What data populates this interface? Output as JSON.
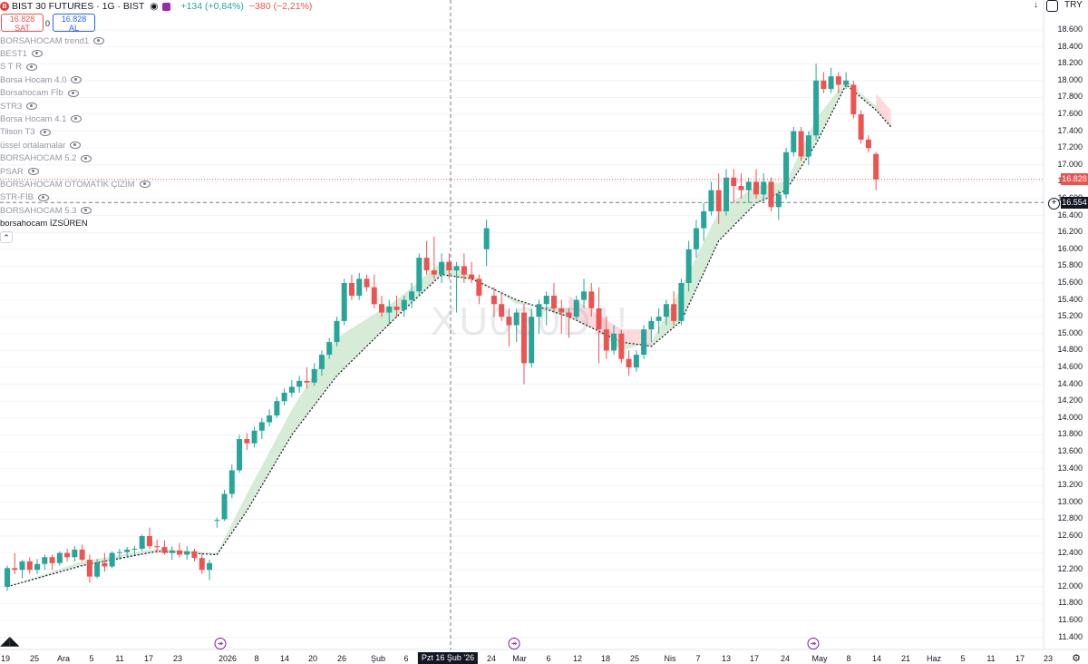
{
  "header": {
    "title": "BIST 30 FUTURES · 1G · BIST",
    "change_abs": "+134 (+0,84%)",
    "change_pct": "−380 (−2,21%)",
    "currency": "TRY"
  },
  "trade": {
    "sell_price": "16.828",
    "sell_label": "SAT",
    "spread": "0",
    "buy_price": "16.828",
    "buy_label": "AL"
  },
  "indicators": [
    "BORSAHOCAM trend1",
    "BEST1",
    "S T R",
    "Borsa Hocam 4.0",
    "Borsahocam Fİb",
    "STR3",
    "Borsa Hocam 4.1",
    "Tilson T3",
    "üssel ortalamalar",
    "BORSAHOCAM 5.2",
    "PSAR",
    "BORSAHOCAM OTOMATİK ÇİZİM",
    "STR-FİB",
    "BORSAHOCAM 5.3",
    "borsahocam İZSÜREN"
  ],
  "watermark": "XU030D1!",
  "price_badges": {
    "last": "16.828",
    "cursor": "16.554"
  },
  "x_cursor_label": "Pzt 16 Şub '26",
  "colors": {
    "up": "#26a69a",
    "down": "#ef5350",
    "band_up": "#c8e6c9",
    "band_down": "#ffcdd2",
    "purple": "#7b1fa2"
  },
  "chart_data": {
    "type": "candlestick",
    "y_ticks": [
      11400,
      11600,
      11800,
      12000,
      12200,
      12400,
      12600,
      12800,
      13000,
      13200,
      13400,
      13600,
      13800,
      14000,
      14200,
      14400,
      14600,
      14800,
      15000,
      15200,
      15400,
      15600,
      15800,
      16000,
      16200,
      16400,
      16600,
      16800,
      17000,
      17200,
      17400,
      17600,
      17800,
      18000,
      18200,
      18400,
      18600
    ],
    "y_tick_labels": [
      "11.400",
      "11.600",
      "11.800",
      "12.000",
      "12.200",
      "12.400",
      "12.600",
      "12.800",
      "13.000",
      "13.200",
      "13.400",
      "13.600",
      "13.800",
      "14.000",
      "14.200",
      "14.400",
      "14.600",
      "14.800",
      "15.000",
      "15.200",
      "15.400",
      "15.600",
      "15.800",
      "16.000",
      "16.200",
      "16.400",
      "16.600",
      "16.800",
      "17.000",
      "17.200",
      "17.400",
      "17.600",
      "17.800",
      "18.000",
      "18.200",
      "18.400",
      "18.600"
    ],
    "ylim": [
      11300,
      18750
    ],
    "last_price": 16828,
    "cursor_price": 16554,
    "x_ticks": [
      "19",
      "25",
      "Ara",
      "5",
      "11",
      "17",
      "23",
      "2026",
      "8",
      "14",
      "20",
      "26",
      "Şub",
      "6",
      "24",
      "Mar",
      "6",
      "12",
      "18",
      "25",
      "Nis",
      "7",
      "13",
      "17",
      "24",
      "May",
      "8",
      "14",
      "21",
      "Haz",
      "5",
      "11",
      "17",
      "23"
    ],
    "ohlc": [
      [
        12000,
        12250,
        11950,
        12220
      ],
      [
        12220,
        12400,
        12150,
        12200
      ],
      [
        12200,
        12320,
        12100,
        12300
      ],
      [
        12300,
        12350,
        12150,
        12200
      ],
      [
        12200,
        12330,
        12150,
        12270
      ],
      [
        12270,
        12380,
        12200,
        12350
      ],
      [
        12350,
        12380,
        12200,
        12280
      ],
      [
        12280,
        12420,
        12250,
        12400
      ],
      [
        12400,
        12450,
        12300,
        12350
      ],
      [
        12350,
        12480,
        12300,
        12440
      ],
      [
        12440,
        12500,
        12300,
        12320
      ],
      [
        12320,
        12380,
        12050,
        12120
      ],
      [
        12120,
        12330,
        12100,
        12280
      ],
      [
        12280,
        12400,
        12180,
        12240
      ],
      [
        12240,
        12420,
        12220,
        12400
      ],
      [
        12400,
        12450,
        12320,
        12410
      ],
      [
        12410,
        12470,
        12350,
        12440
      ],
      [
        12440,
        12480,
        12380,
        12450
      ],
      [
        12450,
        12620,
        12420,
        12600
      ],
      [
        12600,
        12700,
        12450,
        12480
      ],
      [
        12480,
        12560,
        12400,
        12470
      ],
      [
        12470,
        12550,
        12380,
        12400
      ],
      [
        12400,
        12480,
        12320,
        12430
      ],
      [
        12430,
        12520,
        12350,
        12380
      ],
      [
        12380,
        12480,
        12320,
        12420
      ],
      [
        12420,
        12450,
        12300,
        12340
      ],
      [
        12340,
        12400,
        12150,
        12200
      ],
      [
        12200,
        12320,
        12080,
        12280
      ],
      [
        12780,
        12820,
        12700,
        12790
      ],
      [
        12800,
        13150,
        12780,
        13100
      ],
      [
        13100,
        13450,
        13050,
        13380
      ],
      [
        13380,
        13800,
        13350,
        13750
      ],
      [
        13750,
        13820,
        13620,
        13700
      ],
      [
        13700,
        13900,
        13650,
        13850
      ],
      [
        13850,
        14000,
        13750,
        13950
      ],
      [
        13950,
        14100,
        13900,
        14030
      ],
      [
        14030,
        14250,
        14000,
        14200
      ],
      [
        14200,
        14350,
        14150,
        14300
      ],
      [
        14300,
        14450,
        14250,
        14370
      ],
      [
        14370,
        14500,
        14300,
        14440
      ],
      [
        14440,
        14600,
        14350,
        14420
      ],
      [
        14420,
        14650,
        14380,
        14580
      ],
      [
        14580,
        14800,
        14500,
        14750
      ],
      [
        14750,
        14950,
        14700,
        14900
      ],
      [
        14900,
        15200,
        14850,
        15150
      ],
      [
        15150,
        15650,
        15100,
        15600
      ],
      [
        15600,
        15700,
        15400,
        15450
      ],
      [
        15450,
        15720,
        15400,
        15650
      ],
      [
        15650,
        15700,
        15500,
        15550
      ],
      [
        15550,
        15700,
        15300,
        15350
      ],
      [
        15350,
        15450,
        15200,
        15250
      ],
      [
        15250,
        15400,
        15100,
        15320
      ],
      [
        15320,
        15450,
        15200,
        15280
      ],
      [
        15280,
        15450,
        15200,
        15400
      ],
      [
        15400,
        15600,
        15300,
        15500
      ],
      [
        15500,
        15950,
        15450,
        15900
      ],
      [
        15900,
        16100,
        15700,
        15750
      ],
      [
        15750,
        16150,
        15650,
        15700
      ],
      [
        15700,
        15950,
        15600,
        15850
      ],
      [
        15850,
        15950,
        15650,
        15750
      ],
      [
        15750,
        15850,
        15250,
        15800
      ],
      [
        15800,
        15950,
        15600,
        15700
      ],
      [
        15700,
        15850,
        15600,
        15650
      ],
      [
        15650,
        15700,
        15350,
        15450
      ],
      [
        16000,
        16350,
        15800,
        16250
      ],
      [
        15450,
        15550,
        15200,
        15350
      ],
      [
        15350,
        15500,
        15150,
        15200
      ],
      [
        15200,
        15300,
        14850,
        15100
      ],
      [
        15100,
        15300,
        14900,
        15250
      ],
      [
        15250,
        15350,
        14400,
        14650
      ],
      [
        14650,
        15300,
        14600,
        15200
      ],
      [
        15200,
        15400,
        15000,
        15350
      ],
      [
        15350,
        15500,
        15100,
        15450
      ],
      [
        15450,
        15600,
        15250,
        15300
      ],
      [
        15300,
        15400,
        15000,
        15250
      ],
      [
        15250,
        15300,
        14950,
        15200
      ],
      [
        15200,
        15450,
        15150,
        15400
      ],
      [
        15400,
        15650,
        15300,
        15500
      ],
      [
        15500,
        15600,
        15200,
        15300
      ],
      [
        15300,
        15550,
        14650,
        15050
      ],
      [
        15050,
        15200,
        14700,
        14800
      ],
      [
        14800,
        15100,
        14750,
        15000
      ],
      [
        15000,
        15050,
        14650,
        14700
      ],
      [
        14700,
        14800,
        14500,
        14600
      ],
      [
        14600,
        14800,
        14550,
        14750
      ],
      [
        14750,
        15100,
        14700,
        15050
      ],
      [
        15050,
        15200,
        14900,
        15150
      ],
      [
        15150,
        15300,
        15000,
        15200
      ],
      [
        15200,
        15400,
        15100,
        15350
      ],
      [
        15350,
        15500,
        15100,
        15150
      ],
      [
        15150,
        15650,
        15100,
        15600
      ],
      [
        15600,
        16100,
        15500,
        16000
      ],
      [
        16000,
        16350,
        15900,
        16250
      ],
      [
        16250,
        16550,
        16100,
        16450
      ],
      [
        16450,
        16800,
        16400,
        16700
      ],
      [
        16700,
        16900,
        16300,
        16450
      ],
      [
        16450,
        16950,
        16400,
        16850
      ],
      [
        16850,
        16950,
        16550,
        16750
      ],
      [
        16750,
        16900,
        16600,
        16700
      ],
      [
        16700,
        16850,
        16550,
        16800
      ],
      [
        16800,
        16950,
        16600,
        16650
      ],
      [
        16650,
        16900,
        16550,
        16800
      ],
      [
        16800,
        16850,
        16450,
        16500
      ],
      [
        16500,
        16700,
        16350,
        16650
      ],
      [
        16650,
        17200,
        16600,
        17150
      ],
      [
        17150,
        17450,
        17100,
        17400
      ],
      [
        17400,
        17450,
        17050,
        17100
      ],
      [
        17100,
        17400,
        17000,
        17350
      ],
      [
        17350,
        18200,
        17300,
        18000
      ],
      [
        18000,
        18100,
        17850,
        17900
      ],
      [
        17900,
        18150,
        17850,
        18050
      ],
      [
        18050,
        18100,
        17850,
        17950
      ],
      [
        17950,
        18100,
        17900,
        18000
      ],
      [
        17950,
        18000,
        17550,
        17600
      ],
      [
        17600,
        17650,
        17250,
        17300
      ],
      [
        17300,
        17350,
        17150,
        17200
      ],
      [
        17130,
        17150,
        16700,
        16828
      ]
    ],
    "baseline_dotted": [
      [
        0,
        12000
      ],
      [
        10,
        12250
      ],
      [
        20,
        12420
      ],
      [
        28,
        12380
      ],
      [
        32,
        12900
      ],
      [
        38,
        13800
      ],
      [
        44,
        14500
      ],
      [
        52,
        15200
      ],
      [
        58,
        15700
      ],
      [
        62,
        15650
      ],
      [
        68,
        15400
      ],
      [
        75,
        15200
      ],
      [
        82,
        14900
      ],
      [
        86,
        14850
      ],
      [
        90,
        15150
      ],
      [
        95,
        16100
      ],
      [
        100,
        16550
      ],
      [
        104,
        16700
      ],
      [
        108,
        17250
      ],
      [
        112,
        17950
      ],
      [
        116,
        17650
      ],
      [
        118,
        17450
      ]
    ],
    "band_upper": [
      [
        0,
        12000
      ],
      [
        10,
        12300
      ],
      [
        20,
        12450
      ],
      [
        28,
        12400
      ],
      [
        32,
        13100
      ],
      [
        38,
        14100
      ],
      [
        44,
        14950
      ],
      [
        52,
        15400
      ],
      [
        58,
        15850
      ],
      [
        62,
        15700
      ],
      [
        68,
        15350
      ],
      [
        75,
        15300
      ],
      [
        82,
        14800
      ],
      [
        86,
        14900
      ],
      [
        90,
        15550
      ],
      [
        95,
        16450
      ],
      [
        100,
        16750
      ],
      [
        104,
        16800
      ],
      [
        108,
        17550
      ],
      [
        112,
        18000
      ],
      [
        116,
        17700
      ],
      [
        118,
        17500
      ]
    ],
    "band_down_ranges": [
      [
        59,
        66
      ],
      [
        75,
        86
      ],
      [
        113,
        118
      ]
    ]
  }
}
